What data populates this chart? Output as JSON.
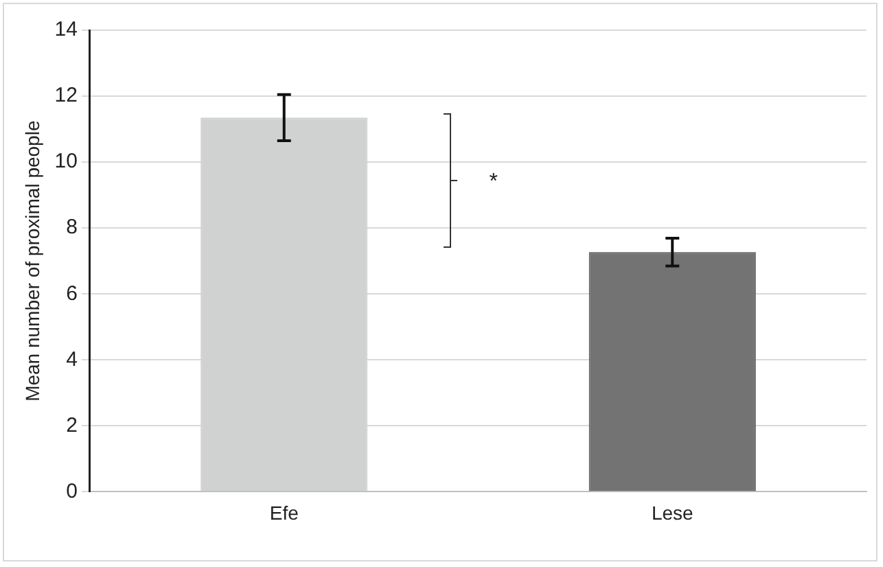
{
  "chart_data": {
    "type": "bar",
    "ylabel": "Mean number of proximal people",
    "categories": [
      "Efe",
      "Lese"
    ],
    "colors": [
      "#d0d2d1",
      "#737373"
    ],
    "values": [
      11.35,
      7.27
    ],
    "errors": [
      0.7,
      0.42
    ],
    "ylim": [
      0,
      14
    ],
    "yticks": [
      0,
      2,
      4,
      6,
      8,
      10,
      12,
      14
    ],
    "grid": "y",
    "annotations": [
      "*"
    ]
  }
}
